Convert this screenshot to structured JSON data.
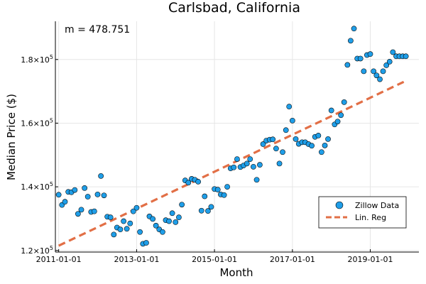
{
  "chart_data": {
    "type": "scatter",
    "title": "Carlsbad, California",
    "xlabel": "Month",
    "ylabel": "Median Price ($)",
    "annotation": "m = 478.751",
    "x_ticks": [
      "2011-01-01",
      "2013-01-01",
      "2015-01-01",
      "2017-01-01",
      "2019-01-01"
    ],
    "y_ticks": [
      {
        "value": 120000,
        "base": "1.2×10",
        "exp": "5"
      },
      {
        "value": 140000,
        "base": "1.4×10",
        "exp": "5"
      },
      {
        "value": 160000,
        "base": "1.6×10",
        "exp": "5"
      },
      {
        "value": 180000,
        "base": "1.8×10",
        "exp": "5"
      }
    ],
    "xlim": [
      "2010-12-01",
      "2020-04-01"
    ],
    "ylim": [
      119500,
      192000
    ],
    "grid": true,
    "legend_position": "bottom-right",
    "colors": {
      "scatter": "#1f9ee8",
      "regression": "#e26f46"
    },
    "series": [
      {
        "name": "Zillow Data",
        "type": "scatter",
        "x": [
          "2011-01-01",
          "2011-02-01",
          "2011-03-01",
          "2011-04-01",
          "2011-05-01",
          "2011-06-01",
          "2011-07-01",
          "2011-08-01",
          "2011-09-01",
          "2011-10-01",
          "2011-11-01",
          "2011-12-01",
          "2012-01-01",
          "2012-02-01",
          "2012-03-01",
          "2012-04-01",
          "2012-05-01",
          "2012-06-01",
          "2012-07-01",
          "2012-08-01",
          "2012-09-01",
          "2012-10-01",
          "2012-11-01",
          "2012-12-01",
          "2013-01-01",
          "2013-02-01",
          "2013-03-01",
          "2013-04-01",
          "2013-05-01",
          "2013-06-01",
          "2013-07-01",
          "2013-08-01",
          "2013-09-01",
          "2013-10-01",
          "2013-11-01",
          "2013-12-01",
          "2014-01-01",
          "2014-02-01",
          "2014-03-01",
          "2014-04-01",
          "2014-05-01",
          "2014-06-01",
          "2014-07-01",
          "2014-08-01",
          "2014-09-01",
          "2014-10-01",
          "2014-11-01",
          "2014-12-01",
          "2015-01-01",
          "2015-02-01",
          "2015-03-01",
          "2015-04-01",
          "2015-05-01",
          "2015-06-01",
          "2015-07-01",
          "2015-08-01",
          "2015-09-01",
          "2015-10-01",
          "2015-11-01",
          "2015-12-01",
          "2016-01-01",
          "2016-02-01",
          "2016-03-01",
          "2016-04-01",
          "2016-05-01",
          "2016-06-01",
          "2016-07-01",
          "2016-08-01",
          "2016-09-01",
          "2016-10-01",
          "2016-11-01",
          "2016-12-01",
          "2017-01-01",
          "2017-02-01",
          "2017-03-01",
          "2017-04-01",
          "2017-05-01",
          "2017-06-01",
          "2017-07-01",
          "2017-08-01",
          "2017-09-01",
          "2017-10-01",
          "2017-11-01",
          "2017-12-01",
          "2018-01-01",
          "2018-02-01",
          "2018-03-01",
          "2018-04-01",
          "2018-05-01",
          "2018-06-01",
          "2018-07-01",
          "2018-08-01",
          "2018-09-01",
          "2018-10-01",
          "2018-11-01",
          "2018-12-01",
          "2019-01-01",
          "2019-02-01",
          "2019-03-01",
          "2019-04-01",
          "2019-05-01",
          "2019-06-01",
          "2019-07-01",
          "2019-08-01",
          "2019-09-01",
          "2019-10-01",
          "2019-11-01",
          "2019-12-01"
        ],
        "y": [
          137500,
          134300,
          135300,
          138400,
          138300,
          139000,
          131500,
          132800,
          139600,
          136900,
          132100,
          132300,
          137600,
          143400,
          137300,
          130600,
          130400,
          125000,
          127200,
          126600,
          129200,
          126800,
          128500,
          132300,
          133400,
          125800,
          122100,
          122400,
          130700,
          129900,
          127800,
          126600,
          125800,
          129500,
          129200,
          131700,
          128900,
          130400,
          134400,
          142000,
          141300,
          142500,
          142200,
          141600,
          132500,
          137000,
          132400,
          133700,
          139300,
          139100,
          137600,
          137400,
          140000,
          145800,
          146100,
          148700,
          146200,
          146700,
          147300,
          148700,
          146300,
          142200,
          146900,
          153400,
          154500,
          154800,
          154900,
          152000,
          147300,
          150900,
          157800,
          165200,
          160800,
          155000,
          153500,
          154000,
          154000,
          153400,
          152900,
          155700,
          156100,
          150900,
          153000,
          155000,
          164000,
          159600,
          160500,
          162500,
          166600,
          178300,
          185900,
          189700,
          180300,
          180300,
          176300,
          181400,
          181700,
          176300,
          175000,
          173800,
          176300,
          178200,
          179300,
          182300,
          181000,
          181000,
          181000,
          181000
        ]
      },
      {
        "name": "Lin. Reg",
        "type": "line",
        "x": [
          "2011-01-01",
          "2019-12-01"
        ],
        "y": [
          121500,
          173300
        ]
      }
    ]
  }
}
